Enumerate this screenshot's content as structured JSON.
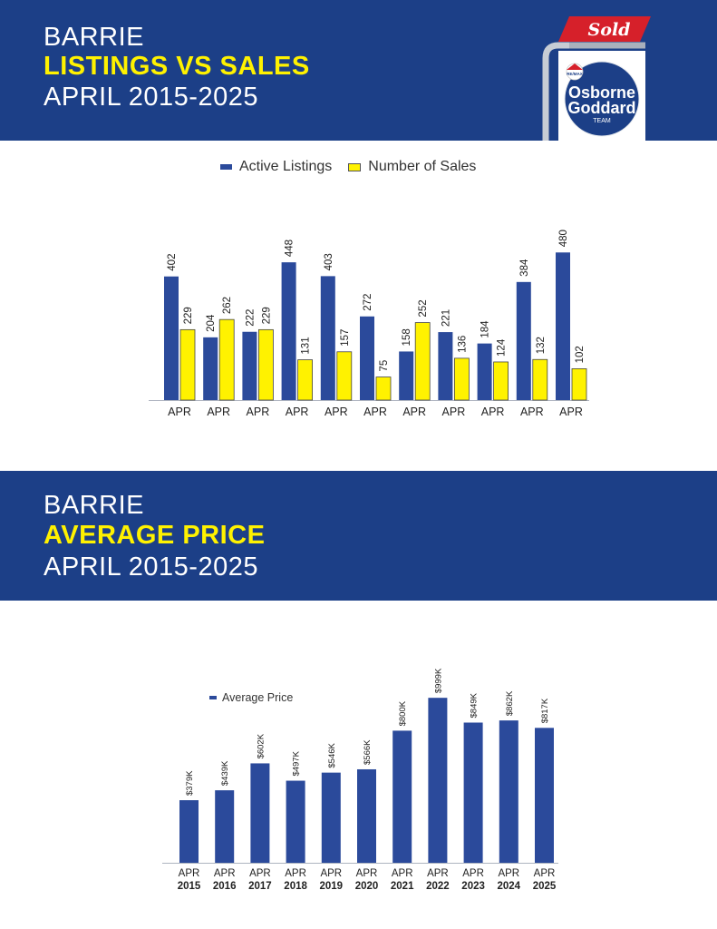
{
  "header1": {
    "line1": "BARRIE",
    "line2": "LISTINGS VS SALES",
    "line3": "APRIL 2015-2025"
  },
  "header2": {
    "line1": "BARRIE",
    "line2": "AVERAGE PRICE",
    "line3": "APRIL 2015-2025"
  },
  "logo": {
    "sign_text": "Sold",
    "brand_small": "RE/MAX",
    "team_line1": "Osborne",
    "team_line2": "Goddard",
    "team_line3": "TEAM"
  },
  "colors": {
    "navy": "#1c3f87",
    "bar_blue": "#2b4a9b",
    "bar_yellow": "#fff200",
    "sign_red": "#d6202a"
  },
  "chart_data": [
    {
      "type": "bar",
      "categories": [
        "APR",
        "APR",
        "APR",
        "APR",
        "APR",
        "APR",
        "APR",
        "APR",
        "APR",
        "APR",
        "APR"
      ],
      "series": [
        {
          "name": "Active Listings",
          "values": [
            402,
            204,
            222,
            448,
            403,
            272,
            158,
            221,
            184,
            384,
            480
          ]
        },
        {
          "name": "Number of Sales",
          "values": [
            229,
            262,
            229,
            131,
            157,
            75,
            252,
            136,
            124,
            132,
            102
          ]
        }
      ],
      "legend": "top-center",
      "ylim": [
        0,
        520
      ],
      "grid": false
    },
    {
      "type": "bar",
      "categories": [
        "APR",
        "APR",
        "APR",
        "APR",
        "APR",
        "APR",
        "APR",
        "APR",
        "APR",
        "APR",
        "APR"
      ],
      "years": [
        "2015",
        "2016",
        "2017",
        "2018",
        "2019",
        "2020",
        "2021",
        "2022",
        "2023",
        "2024",
        "2025"
      ],
      "series": [
        {
          "name": "Average Price",
          "values": [
            379,
            439,
            602,
            497,
            546,
            566,
            800,
            999,
            849,
            862,
            817
          ],
          "labels": [
            "$379K",
            "$439K",
            "$602K",
            "$497K",
            "$546K",
            "$566K",
            "$800K",
            "$999K",
            "$849K",
            "$862K",
            "$817K"
          ]
        }
      ],
      "legend": "top-left",
      "ylim": [
        0,
        1000
      ],
      "grid": false
    }
  ]
}
